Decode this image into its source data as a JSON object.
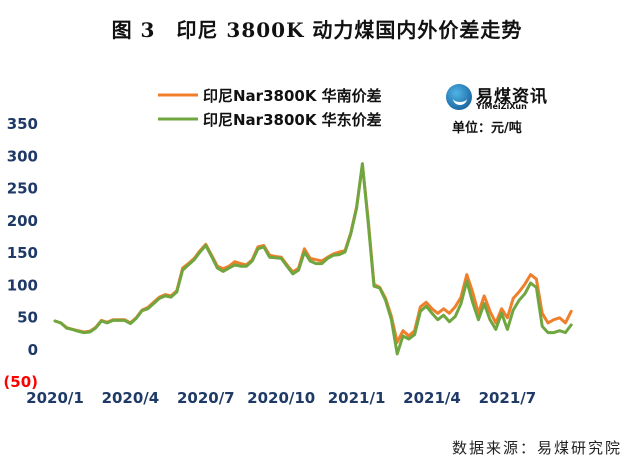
{
  "title": "图 3　印尼 3800K 动力煤国内外价差走势",
  "source": "数据来源：易煤研究院",
  "logo": {
    "cn": "易煤资讯",
    "en": "YiMeiZiXun",
    "mark_icon": "coal-logo-icon"
  },
  "unit": "单位：元/吨",
  "chart_data": {
    "type": "line",
    "ylim": [
      -50,
      350
    ],
    "yticks": [
      350,
      300,
      250,
      200,
      150,
      100,
      50,
      0,
      -50
    ],
    "ytick_labels": [
      "350",
      "300",
      "250",
      "200",
      "150",
      "100",
      "50",
      "0",
      "(50)"
    ],
    "xlim": [
      0,
      90
    ],
    "xticks": [
      {
        "x": 0,
        "label": "2020/1"
      },
      {
        "x": 13,
        "label": "2020/4"
      },
      {
        "x": 26,
        "label": "2020/7"
      },
      {
        "x": 39,
        "label": "2020/10"
      },
      {
        "x": 52,
        "label": "2021/1"
      },
      {
        "x": 65,
        "label": "2021/4"
      },
      {
        "x": 78,
        "label": "2021/7"
      }
    ],
    "colors": {
      "south": "#f07f2c",
      "east": "#6fa640",
      "negative_label": "#ff0000"
    },
    "series": [
      {
        "name": "印尼Nar3800K 华南价差",
        "points": [
          [
            0,
            43
          ],
          [
            1,
            40
          ],
          [
            2,
            33
          ],
          [
            3,
            30
          ],
          [
            4,
            28
          ],
          [
            5,
            26
          ],
          [
            6,
            27
          ],
          [
            7,
            33
          ],
          [
            8,
            44
          ],
          [
            9,
            41
          ],
          [
            10,
            45
          ],
          [
            11,
            45
          ],
          [
            12,
            45
          ],
          [
            13,
            40
          ],
          [
            14,
            48
          ],
          [
            15,
            60
          ],
          [
            16,
            64
          ],
          [
            17,
            72
          ],
          [
            18,
            80
          ],
          [
            19,
            84
          ],
          [
            20,
            82
          ],
          [
            21,
            90
          ],
          [
            22,
            125
          ],
          [
            23,
            132
          ],
          [
            24,
            140
          ],
          [
            25,
            152
          ],
          [
            26,
            162
          ],
          [
            27,
            145
          ],
          [
            28,
            128
          ],
          [
            29,
            124
          ],
          [
            30,
            128
          ],
          [
            31,
            135
          ],
          [
            32,
            132
          ],
          [
            33,
            130
          ],
          [
            34,
            138
          ],
          [
            35,
            158
          ],
          [
            36,
            160
          ],
          [
            37,
            145
          ],
          [
            38,
            143
          ],
          [
            39,
            142
          ],
          [
            40,
            130
          ],
          [
            41,
            119
          ],
          [
            42,
            125
          ],
          [
            43,
            155
          ],
          [
            44,
            140
          ],
          [
            45,
            138
          ],
          [
            46,
            136
          ],
          [
            47,
            142
          ],
          [
            48,
            147
          ],
          [
            49,
            150
          ],
          [
            50,
            152
          ],
          [
            51,
            180
          ],
          [
            52,
            220
          ],
          [
            53,
            285
          ],
          [
            54,
            200
          ],
          [
            55,
            100
          ],
          [
            56,
            95
          ],
          [
            57,
            78
          ],
          [
            58,
            50
          ],
          [
            59,
            10
          ],
          [
            60,
            28
          ],
          [
            61,
            20
          ],
          [
            62,
            28
          ],
          [
            63,
            65
          ],
          [
            64,
            72
          ],
          [
            65,
            62
          ],
          [
            66,
            55
          ],
          [
            67,
            62
          ],
          [
            68,
            55
          ],
          [
            69,
            65
          ],
          [
            70,
            80
          ],
          [
            71,
            115
          ],
          [
            72,
            88
          ],
          [
            73,
            55
          ],
          [
            74,
            82
          ],
          [
            75,
            58
          ],
          [
            76,
            40
          ],
          [
            77,
            62
          ],
          [
            78,
            48
          ],
          [
            79,
            78
          ],
          [
            80,
            88
          ],
          [
            81,
            100
          ],
          [
            82,
            115
          ],
          [
            83,
            108
          ],
          [
            84,
            55
          ],
          [
            85,
            40
          ],
          [
            86,
            45
          ],
          [
            87,
            48
          ],
          [
            88,
            40
          ],
          [
            89,
            58
          ]
        ]
      },
      {
        "name": "印尼Nar3800K 华东价差",
        "points": [
          [
            0,
            43
          ],
          [
            1,
            40
          ],
          [
            2,
            32
          ],
          [
            3,
            30
          ],
          [
            4,
            27
          ],
          [
            5,
            25
          ],
          [
            6,
            26
          ],
          [
            7,
            32
          ],
          [
            8,
            43
          ],
          [
            9,
            40
          ],
          [
            10,
            44
          ],
          [
            11,
            44
          ],
          [
            12,
            44
          ],
          [
            13,
            39
          ],
          [
            14,
            47
          ],
          [
            15,
            59
          ],
          [
            16,
            62
          ],
          [
            17,
            70
          ],
          [
            18,
            78
          ],
          [
            19,
            82
          ],
          [
            20,
            80
          ],
          [
            21,
            88
          ],
          [
            22,
            122
          ],
          [
            23,
            130
          ],
          [
            24,
            138
          ],
          [
            25,
            150
          ],
          [
            26,
            160
          ],
          [
            27,
            143
          ],
          [
            28,
            125
          ],
          [
            29,
            120
          ],
          [
            30,
            125
          ],
          [
            31,
            130
          ],
          [
            32,
            128
          ],
          [
            33,
            128
          ],
          [
            34,
            136
          ],
          [
            35,
            155
          ],
          [
            36,
            158
          ],
          [
            37,
            142
          ],
          [
            38,
            141
          ],
          [
            39,
            140
          ],
          [
            40,
            128
          ],
          [
            41,
            116
          ],
          [
            42,
            122
          ],
          [
            43,
            150
          ],
          [
            44,
            136
          ],
          [
            45,
            132
          ],
          [
            46,
            132
          ],
          [
            47,
            140
          ],
          [
            48,
            145
          ],
          [
            49,
            146
          ],
          [
            50,
            150
          ],
          [
            51,
            178
          ],
          [
            52,
            218
          ],
          [
            53,
            287
          ],
          [
            54,
            195
          ],
          [
            55,
            97
          ],
          [
            56,
            94
          ],
          [
            57,
            75
          ],
          [
            58,
            45
          ],
          [
            59,
            -8
          ],
          [
            60,
            20
          ],
          [
            61,
            15
          ],
          [
            62,
            22
          ],
          [
            63,
            58
          ],
          [
            64,
            66
          ],
          [
            65,
            55
          ],
          [
            66,
            45
          ],
          [
            67,
            52
          ],
          [
            68,
            42
          ],
          [
            69,
            50
          ],
          [
            70,
            70
          ],
          [
            71,
            105
          ],
          [
            72,
            72
          ],
          [
            73,
            45
          ],
          [
            74,
            70
          ],
          [
            75,
            45
          ],
          [
            76,
            30
          ],
          [
            77,
            55
          ],
          [
            78,
            30
          ],
          [
            79,
            60
          ],
          [
            80,
            75
          ],
          [
            81,
            85
          ],
          [
            82,
            102
          ],
          [
            83,
            95
          ],
          [
            84,
            35
          ],
          [
            85,
            25
          ],
          [
            86,
            25
          ],
          [
            87,
            28
          ],
          [
            88,
            25
          ],
          [
            89,
            37
          ]
        ]
      }
    ]
  }
}
